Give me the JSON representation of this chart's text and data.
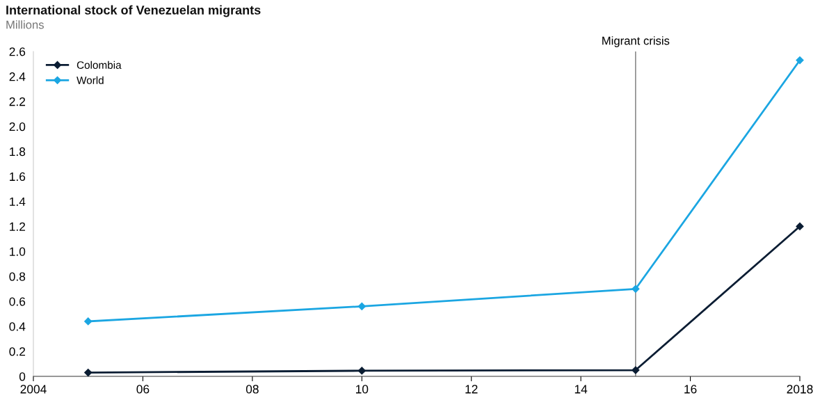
{
  "chart_data": {
    "type": "line",
    "title": "International stock of Venezuelan migrants",
    "subtitle": "Millions",
    "x": [
      2005,
      2010,
      2015,
      2018
    ],
    "series": [
      {
        "name": "Colombia",
        "color": "#0b1d33",
        "values": [
          0.03,
          0.045,
          0.05,
          1.2
        ]
      },
      {
        "name": "World",
        "color": "#1ba6e2",
        "values": [
          0.44,
          0.56,
          0.7,
          2.53
        ]
      }
    ],
    "xlim": [
      2004,
      2018
    ],
    "xticks": [
      2004,
      {
        "value": 2006,
        "label": "06"
      },
      {
        "value": 2008,
        "label": "08"
      },
      {
        "value": 2010,
        "label": "10"
      },
      {
        "value": 2012,
        "label": "12"
      },
      {
        "value": 2014,
        "label": "14"
      },
      {
        "value": 2016,
        "label": "16"
      },
      2018
    ],
    "ylim": [
      0,
      2.6
    ],
    "yticks": [
      0,
      0.2,
      0.4,
      0.6,
      0.8,
      {
        "value": 1.0,
        "label": "1.0"
      },
      1.2,
      1.4,
      1.6,
      1.8,
      {
        "value": 2.0,
        "label": "2.0"
      },
      2.2,
      2.4,
      2.6
    ],
    "ref_lines": [
      {
        "axis": "x",
        "value": 2015,
        "label": "Migrant crisis",
        "color": "#777777"
      }
    ],
    "grid": false,
    "legend": "top left",
    "marker": "diamond",
    "line_style": "solid"
  }
}
